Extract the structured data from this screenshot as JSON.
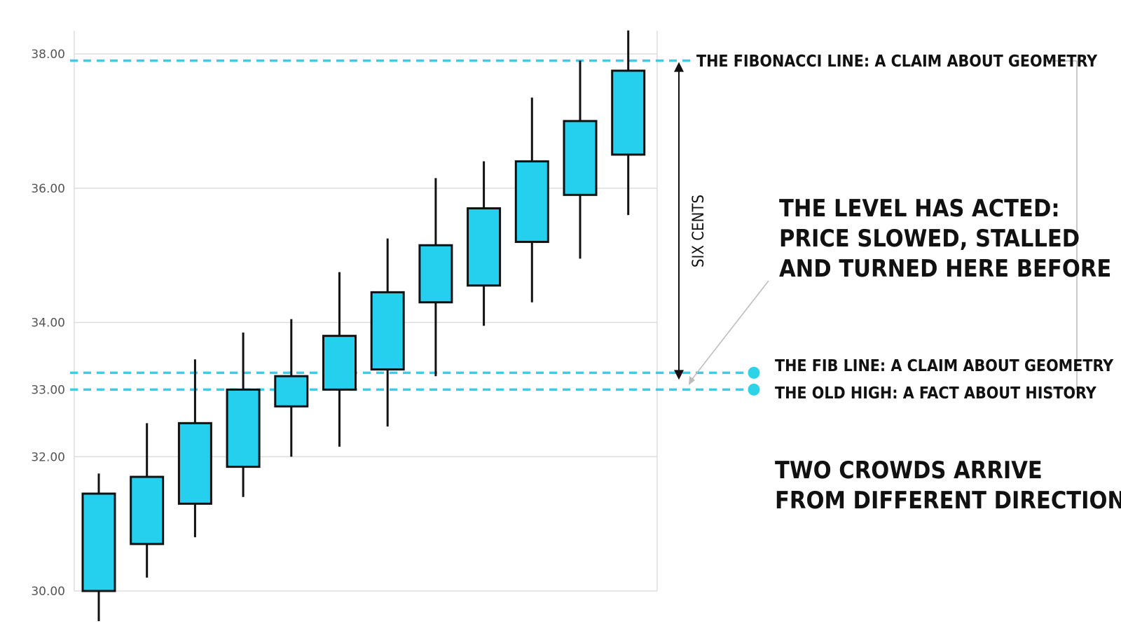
{
  "chart_data": {
    "type": "candlestick",
    "y_ticks": [
      {
        "value": 30,
        "label": "30.00"
      },
      {
        "value": 32,
        "label": "32.00"
      },
      {
        "value": 33,
        "label": "33.00"
      },
      {
        "value": 34,
        "label": "34.00"
      },
      {
        "value": 36,
        "label": "36.00"
      },
      {
        "value": 38,
        "label": "38.00"
      }
    ],
    "ylim": [
      29.5,
      38.3
    ],
    "grid": true,
    "candles": [
      {
        "open": 30.0,
        "close": 31.45,
        "high": 31.75,
        "low": 29.55
      },
      {
        "open": 30.7,
        "close": 31.7,
        "high": 32.5,
        "low": 30.2
      },
      {
        "open": 31.3,
        "close": 32.5,
        "high": 33.45,
        "low": 30.8
      },
      {
        "open": 31.85,
        "close": 33.0,
        "high": 33.85,
        "low": 31.4
      },
      {
        "open": 32.75,
        "close": 33.2,
        "high": 34.05,
        "low": 32.0
      },
      {
        "open": 33.0,
        "close": 33.8,
        "high": 34.75,
        "low": 32.15
      },
      {
        "open": 33.3,
        "close": 34.45,
        "high": 35.25,
        "low": 32.45
      },
      {
        "open": 34.3,
        "close": 35.15,
        "high": 36.15,
        "low": 33.2
      },
      {
        "open": 34.55,
        "close": 35.7,
        "high": 36.4,
        "low": 33.95
      },
      {
        "open": 35.2,
        "close": 36.4,
        "high": 37.35,
        "low": 34.3
      },
      {
        "open": 35.9,
        "close": 37.0,
        "high": 37.9,
        "low": 34.95
      },
      {
        "open": 36.5,
        "close": 37.75,
        "high": 38.35,
        "low": 35.6
      }
    ],
    "levels": [
      {
        "name": "fibonacci-line",
        "value": 37.9,
        "label": "THE FIBONACCI LINE: A CLAIM ABOUT GEOMETRY"
      },
      {
        "name": "fib-line",
        "value": 33.25,
        "label": "THE FIB LINE: A CLAIM ABOUT GEOMETRY"
      },
      {
        "name": "old-high",
        "value": 33.0,
        "label": "THE OLD HIGH: A FACT ABOUT HISTORY"
      }
    ],
    "dimension_label": "SIX CENTS",
    "annotations": [
      {
        "name": "level-has-acted",
        "lines": [
          "THE LEVEL HAS ACTED:",
          "PRICE SLOWED, STALLED",
          "AND TURNED HERE BEFORE"
        ]
      },
      {
        "name": "two-crowds",
        "lines": [
          "TWO CROWDS ARRIVE",
          "FROM DIFFERENT DIRECTIONS"
        ]
      }
    ]
  },
  "colors": {
    "candle_fill": "#24d0ee",
    "candle_stroke": "#111111",
    "level_line": "#2fd3e8",
    "grid": "#dddddd",
    "text": "#111111",
    "axis_text": "#555555"
  }
}
